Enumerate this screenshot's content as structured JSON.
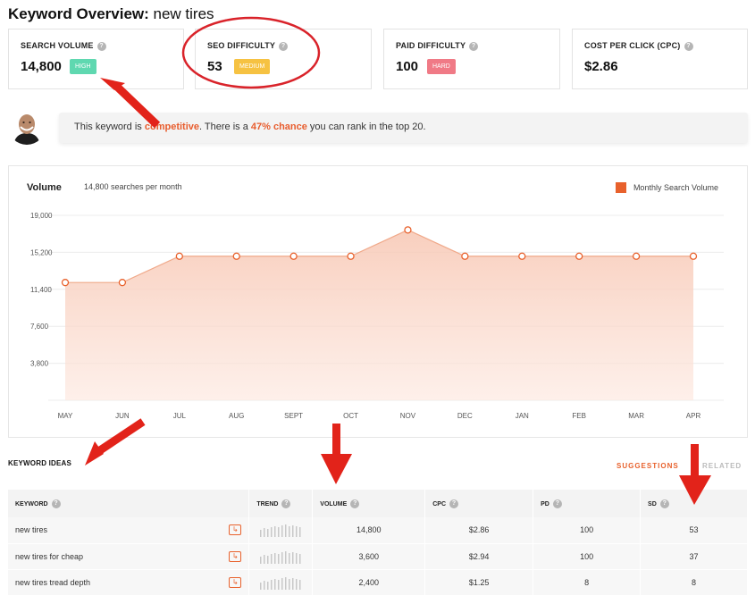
{
  "header": {
    "title_bold": "Keyword Overview:",
    "title_keyword": "new tires"
  },
  "metrics": [
    {
      "label": "SEARCH VOLUME",
      "value": "14,800",
      "badge": "HIGH",
      "badge_color": "#5fd8b0"
    },
    {
      "label": "SEO DIFFICULTY",
      "value": "53",
      "badge": "MEDIUM",
      "badge_color": "#f6c242"
    },
    {
      "label": "PAID DIFFICULTY",
      "value": "100",
      "badge": "HARD",
      "badge_color": "#f07a86"
    },
    {
      "label": "COST PER CLICK (CPC)",
      "value": "$2.86"
    }
  ],
  "insight": {
    "prefix": "This keyword is ",
    "difficulty_word": "competitive",
    "middle": ". There is a ",
    "chance": "47% chance",
    "suffix": " you can rank in the top 20."
  },
  "chart": {
    "title": "Volume",
    "subtitle": "14,800 searches per month",
    "legend": "Monthly Search Volume",
    "accent_color": "#e8612c"
  },
  "chart_data": {
    "type": "area",
    "categories": [
      "MAY",
      "JUN",
      "JUL",
      "AUG",
      "SEPT",
      "OCT",
      "NOV",
      "DEC",
      "JAN",
      "FEB",
      "MAR",
      "APR"
    ],
    "series": [
      {
        "name": "Monthly Search Volume",
        "values": [
          12100,
          12100,
          14800,
          14800,
          14800,
          14800,
          17500,
          14800,
          14800,
          14800,
          14800,
          14800
        ]
      }
    ],
    "yticks": [
      "3,800",
      "7,600",
      "11,400",
      "15,200",
      "19,000"
    ],
    "ytick_values": [
      3800,
      7600,
      11400,
      15200,
      19000
    ],
    "ylim": [
      0,
      19000
    ],
    "grid": true,
    "legend_position": "top-right"
  },
  "ideas": {
    "title": "KEYWORD IDEAS",
    "tabs": [
      "SUGGESTIONS",
      "RELATED"
    ],
    "columns": [
      "KEYWORD",
      "TREND",
      "VOLUME",
      "CPC",
      "PD",
      "SD"
    ],
    "rows": [
      {
        "keyword": "new tires",
        "volume": "14,800",
        "cpc": "$2.86",
        "pd": "100",
        "sd": "53",
        "sd_color": "#fdf5e1"
      },
      {
        "keyword": "new tires for cheap",
        "volume": "3,600",
        "cpc": "$2.94",
        "pd": "100",
        "sd": "37",
        "sd_color": "#fdf5e1"
      },
      {
        "keyword": "new tires tread depth",
        "volume": "2,400",
        "cpc": "$1.25",
        "pd": "8",
        "sd": "8",
        "sd_color": "#daf8ea"
      }
    ]
  }
}
